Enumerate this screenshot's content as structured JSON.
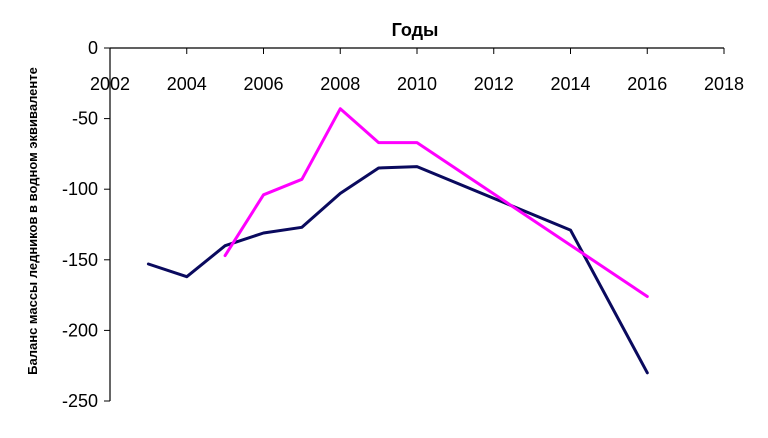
{
  "chart_data": {
    "type": "line",
    "title": "",
    "xlabel": "Годы",
    "ylabel": "Баланс массы ледников в водном эквиваленте",
    "xlim": [
      2002,
      2018
    ],
    "ylim": [
      -250,
      0
    ],
    "x_ticks": [
      2002,
      2004,
      2006,
      2008,
      2010,
      2012,
      2014,
      2016,
      2018
    ],
    "y_ticks": [
      0,
      -50,
      -100,
      -150,
      -200,
      -250
    ],
    "x_axis_position": "top",
    "grid": false,
    "legend": "none",
    "series": [
      {
        "color": "#0a0a5e",
        "points": [
          [
            2003,
            -153
          ],
          [
            2004,
            -162
          ],
          [
            2005,
            -140
          ],
          [
            2006,
            -131
          ],
          [
            2007,
            -127
          ],
          [
            2008,
            -103
          ],
          [
            2009,
            -85
          ],
          [
            2010,
            -84
          ],
          [
            2014,
            -129
          ],
          [
            2016,
            -230
          ]
        ]
      },
      {
        "color": "#ff00ff",
        "points": [
          [
            2005,
            -147
          ],
          [
            2006,
            -104
          ],
          [
            2007,
            -93
          ],
          [
            2008,
            -43
          ],
          [
            2009,
            -67
          ],
          [
            2010,
            -67
          ],
          [
            2016,
            -176
          ]
        ]
      }
    ]
  }
}
